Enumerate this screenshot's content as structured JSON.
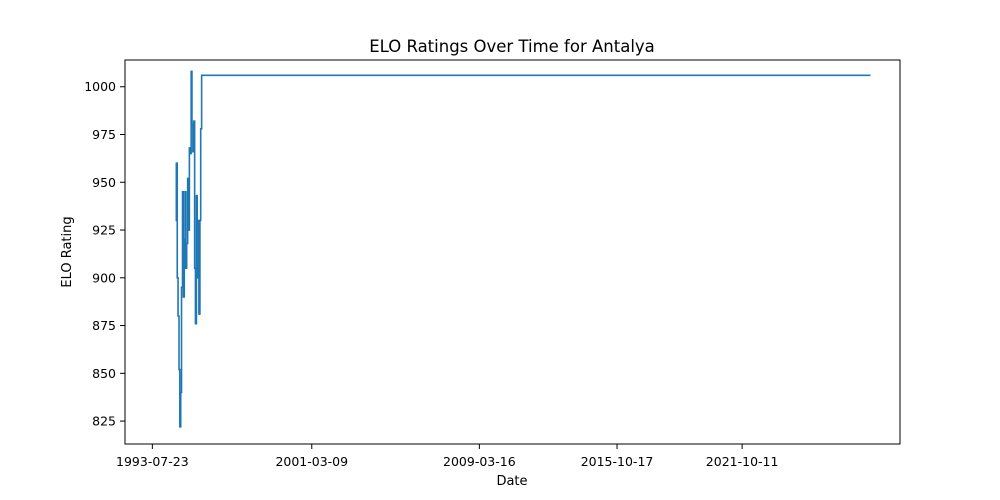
{
  "chart_data": {
    "type": "line",
    "title": "ELO Ratings Over Time for Antalya",
    "xlabel": "Date",
    "ylabel": "ELO Rating",
    "x_ticks": [
      "1993-07-23",
      "2001-03-09",
      "2009-03-16",
      "2015-10-17",
      "2021-10-11"
    ],
    "y_ticks": [
      825,
      850,
      875,
      900,
      925,
      950,
      975,
      1000
    ],
    "xlim": [
      "1992-04-01",
      "2029-05-01"
    ],
    "ylim": [
      813,
      1014
    ],
    "grid": false,
    "legend": "none",
    "series": [
      {
        "color": "#1f77b4",
        "points": [
          [
            "1994-09-01",
            930
          ],
          [
            "1994-09-15",
            960
          ],
          [
            "1994-10-01",
            900
          ],
          [
            "1994-10-15",
            880
          ],
          [
            "1994-11-01",
            852
          ],
          [
            "1994-11-15",
            822
          ],
          [
            "1994-12-01",
            840
          ],
          [
            "1994-12-15",
            895
          ],
          [
            "1995-01-01",
            945
          ],
          [
            "1995-01-15",
            890
          ],
          [
            "1995-02-01",
            920
          ],
          [
            "1995-02-15",
            945
          ],
          [
            "1995-03-01",
            905
          ],
          [
            "1995-03-15",
            918
          ],
          [
            "1995-04-01",
            952
          ],
          [
            "1995-04-15",
            925
          ],
          [
            "1995-05-01",
            968
          ],
          [
            "1995-05-15",
            965
          ],
          [
            "1995-06-01",
            1008
          ],
          [
            "1995-06-15",
            980
          ],
          [
            "1995-07-01",
            966
          ],
          [
            "1995-07-15",
            982
          ],
          [
            "1995-08-01",
            905
          ],
          [
            "1995-08-15",
            876
          ],
          [
            "1995-09-01",
            943
          ],
          [
            "1995-09-15",
            900
          ],
          [
            "1995-10-01",
            930
          ],
          [
            "1995-10-15",
            881
          ],
          [
            "1995-11-01",
            930
          ],
          [
            "1995-11-15",
            978
          ],
          [
            "1995-12-01",
            1006
          ],
          [
            "2027-12-01",
            1006
          ]
        ]
      }
    ]
  }
}
